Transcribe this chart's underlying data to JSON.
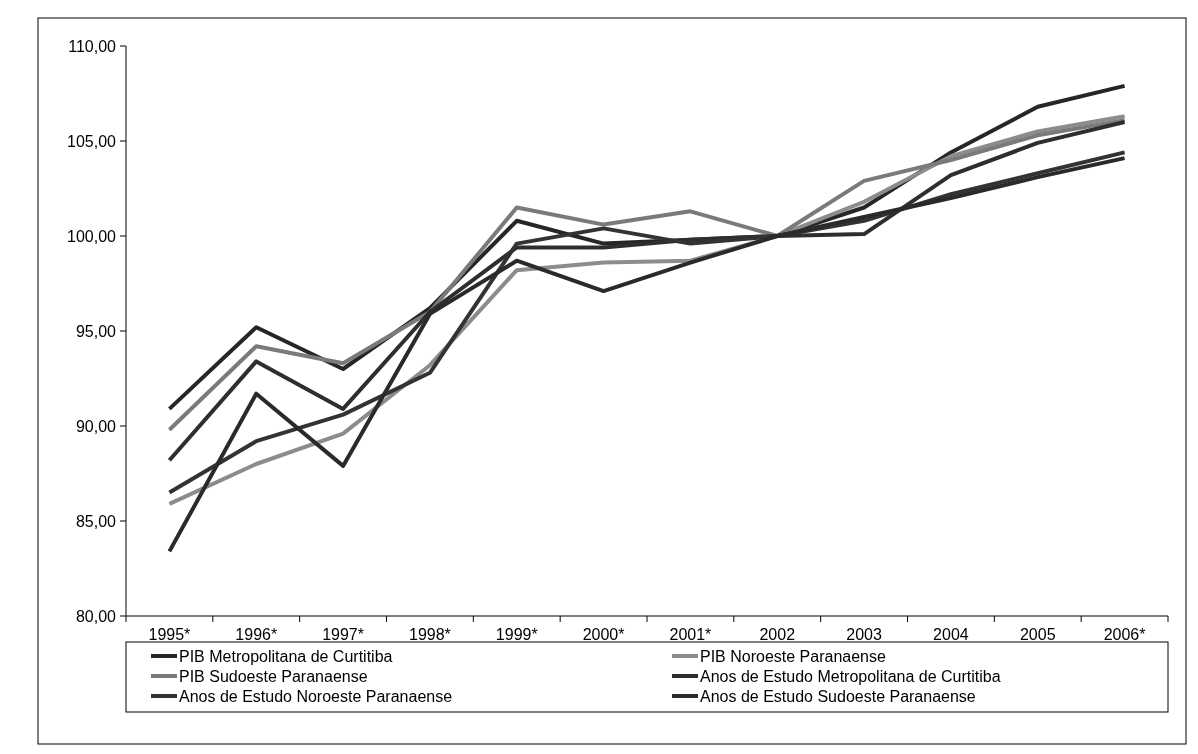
{
  "chart_data": {
    "type": "line",
    "categories": [
      "1995*",
      "1996*",
      "1997*",
      "1998*",
      "1999*",
      "2000*",
      "2001*",
      "2002",
      "2003",
      "2004",
      "2005",
      "2006*"
    ],
    "ylim": [
      80,
      110
    ],
    "yticks": [
      {
        "value": 80,
        "label": "80,00"
      },
      {
        "value": 85,
        "label": "85,00"
      },
      {
        "value": 90,
        "label": "90,00"
      },
      {
        "value": 95,
        "label": "95,00"
      },
      {
        "value": 100,
        "label": "100,00"
      },
      {
        "value": 105,
        "label": "105,00"
      },
      {
        "value": 110,
        "label": "110,00"
      }
    ],
    "grid": false,
    "legend": "bottom",
    "marker": "none",
    "line_style": "solid",
    "series": [
      {
        "name": "PIB Metropolitana de Curtitiba",
        "color": "#262626",
        "values": [
          90.9,
          95.2,
          93.0,
          96.2,
          100.8,
          99.6,
          99.8,
          100,
          101.5,
          104.4,
          106.8,
          107.9
        ]
      },
      {
        "name": "PIB Noroeste Paranaense",
        "color": "#8c8c8c",
        "values": [
          85.9,
          88.0,
          89.6,
          93.2,
          98.2,
          98.6,
          98.7,
          100,
          101.8,
          104.2,
          105.5,
          106.3
        ]
      },
      {
        "name": "PIB Sudoeste Paranaense",
        "color": "#7a7a7a",
        "values": [
          89.8,
          94.2,
          93.3,
          96.0,
          101.5,
          100.6,
          101.3,
          100,
          102.9,
          104.0,
          105.3,
          106.1
        ]
      },
      {
        "name": "Anos de Estudo Metropolitana de Curtitiba",
        "color": "#2e2e2e",
        "values": [
          88.2,
          93.4,
          90.9,
          96.0,
          99.4,
          99.4,
          99.8,
          100,
          100.1,
          103.2,
          104.9,
          106.0
        ]
      },
      {
        "name": "Anos de Estudo Noroeste Paranaense",
        "color": "#333333",
        "values": [
          86.5,
          89.2,
          90.6,
          92.8,
          99.6,
          100.4,
          99.6,
          100,
          100.8,
          102.2,
          103.3,
          104.4
        ]
      },
      {
        "name": "Anos de Estudo Sudoeste Paranaense",
        "color": "#2a2a2a",
        "values": [
          83.4,
          91.7,
          87.9,
          95.9,
          98.7,
          97.1,
          98.6,
          100,
          101.0,
          102.0,
          103.1,
          104.1
        ]
      }
    ]
  }
}
